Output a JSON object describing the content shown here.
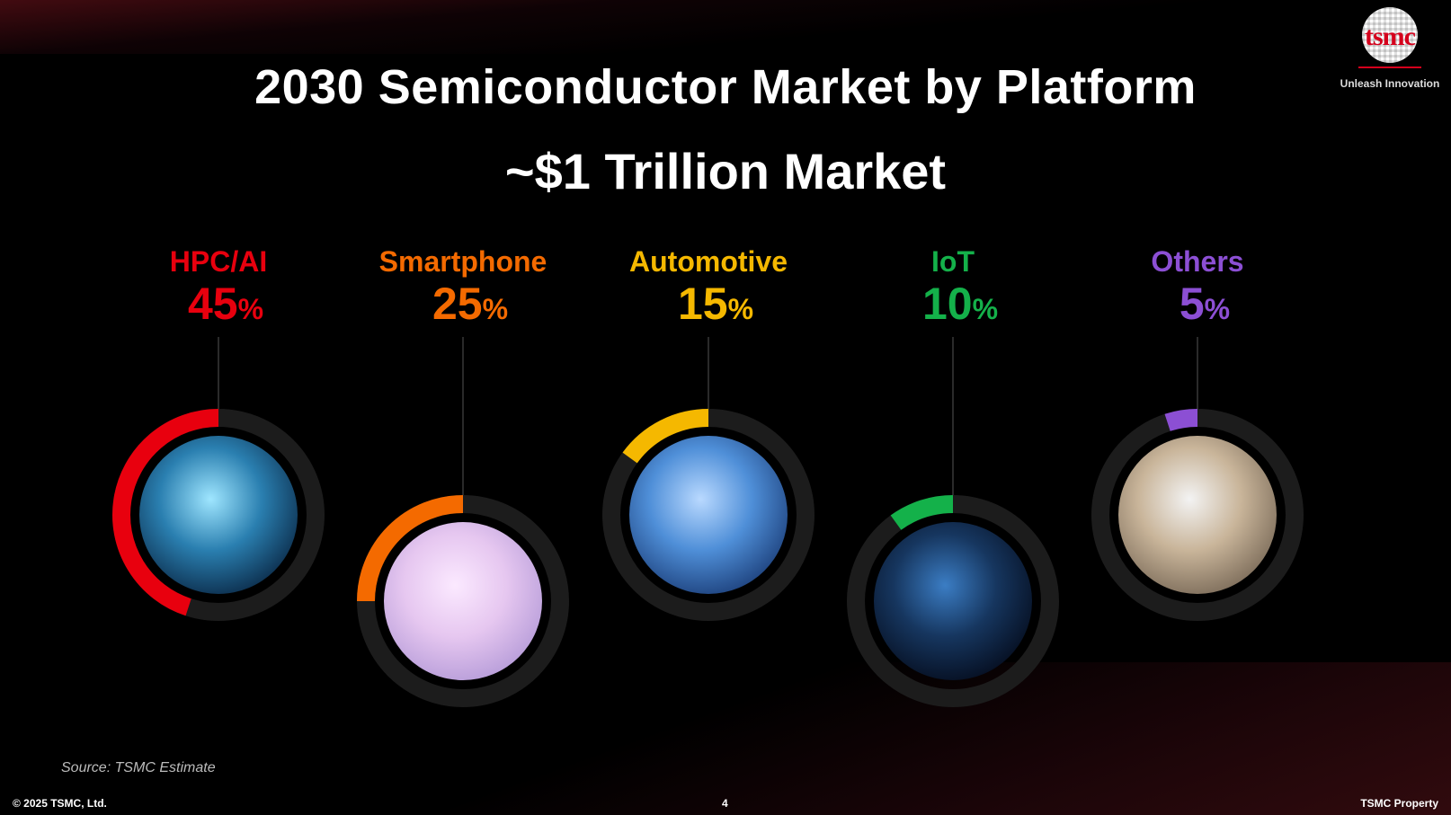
{
  "title": "2030 Semiconductor Market by Platform",
  "subtitle": "~$1 Trillion Market",
  "logo": {
    "word": "tsmc",
    "tagline": "Unleash Innovation"
  },
  "source": "Source: TSMC Estimate",
  "footer": {
    "copyright": "© 2025 TSMC, Ltd.",
    "page_number": "4",
    "property": "TSMC Property"
  },
  "chart_data": {
    "type": "pie",
    "title": "2030 Semiconductor Market by Platform",
    "subtitle": "~$1 Trillion Market",
    "unit": "%",
    "categories": [
      "HPC/AI",
      "Smartphone",
      "Automotive",
      "IoT",
      "Others"
    ],
    "values": [
      45,
      25,
      15,
      10,
      5
    ],
    "colors": [
      "#e8000e",
      "#f46a00",
      "#f5b800",
      "#14b14a",
      "#8c4fd4"
    ],
    "icons": [
      "data-center-image",
      "smartphone-hand-image",
      "highway-traffic-image",
      "city-skyline-image",
      "collage-image"
    ]
  }
}
